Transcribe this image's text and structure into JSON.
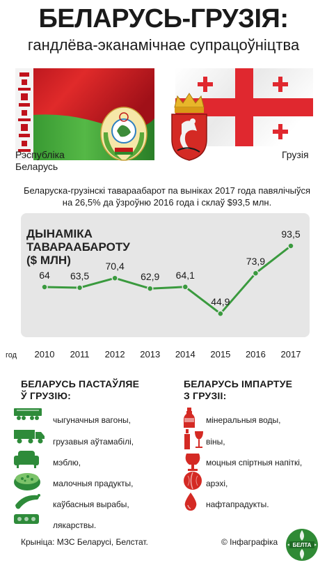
{
  "header": {
    "title": "БЕЛАРУСЬ-ГРУЗІЯ:",
    "subtitle": "гандлёва-эканамічнае супрацоўніцтва"
  },
  "countries": {
    "belarus": "Рэспубліка\nБеларусь",
    "georgia": "Грузія"
  },
  "intro": "Беларуска-грузінскі тавараабарот па выніках 2017 года павялічыўся на 26,5% да ўзроўню 2016 года і склаў $93,5 млн.",
  "chart_data": {
    "type": "line",
    "title": "ДЫНАМІКА ТАВАРААБАРОТУ ($ МЛН)",
    "title_lines": [
      "ДЫНАМІКА",
      "ТАВАРААБАРОТУ",
      "($ МЛН)"
    ],
    "xlabel": "год",
    "ylabel": "",
    "x": [
      "2010",
      "2011",
      "2012",
      "2013",
      "2014",
      "2015",
      "2016",
      "2017"
    ],
    "values": [
      64,
      63.5,
      70.4,
      62.9,
      64.1,
      44.9,
      73.9,
      93.5
    ],
    "value_labels": [
      "64",
      "63,5",
      "70,4",
      "62,9",
      "64,1",
      "44,9",
      "73,9",
      "93,5"
    ],
    "ylim": [
      40,
      95
    ],
    "grid": false,
    "colors": {
      "line": "#3a9a3e",
      "panel": "#e6e6e6"
    }
  },
  "exports": {
    "heading": "БЕЛАРУСЬ ПАСТАЎЛЯЕ\nЎ ГРУЗІЮ:",
    "items": [
      {
        "label": "чыгуначныя вагоны,",
        "icon": "railcar-icon"
      },
      {
        "label": "грузавыя аўтамабілі,",
        "icon": "truck-icon"
      },
      {
        "label": "мэблю,",
        "icon": "armchair-icon"
      },
      {
        "label": "малочныя прадукты,",
        "icon": "cheese-icon"
      },
      {
        "label": "каўбасныя вырабы,",
        "icon": "sausage-icon"
      },
      {
        "label": "лякарствы.",
        "icon": "pills-icon"
      }
    ],
    "color": "#2e8b3a"
  },
  "imports": {
    "heading": "БЕЛАРУСЬ ІМПАРТУЕ\nЗ ГРУЗІІ:",
    "items": [
      {
        "label": "мінеральныя воды,",
        "icon": "water-bottle-icon"
      },
      {
        "label": "віны,",
        "icon": "wine-icon"
      },
      {
        "label": "моцныя спіртныя напіткі,",
        "icon": "brandy-glass-icon"
      },
      {
        "label": "арэхі,",
        "icon": "walnut-icon"
      },
      {
        "label": "нафтапрадукты.",
        "icon": "oil-drop-icon"
      }
    ],
    "color": "#d42a24"
  },
  "footer": {
    "source": "Крыніца: МЗС Беларусі, Белстат.",
    "credit": "© Інфаграфіка",
    "logo_text": "БЕЛТА"
  }
}
